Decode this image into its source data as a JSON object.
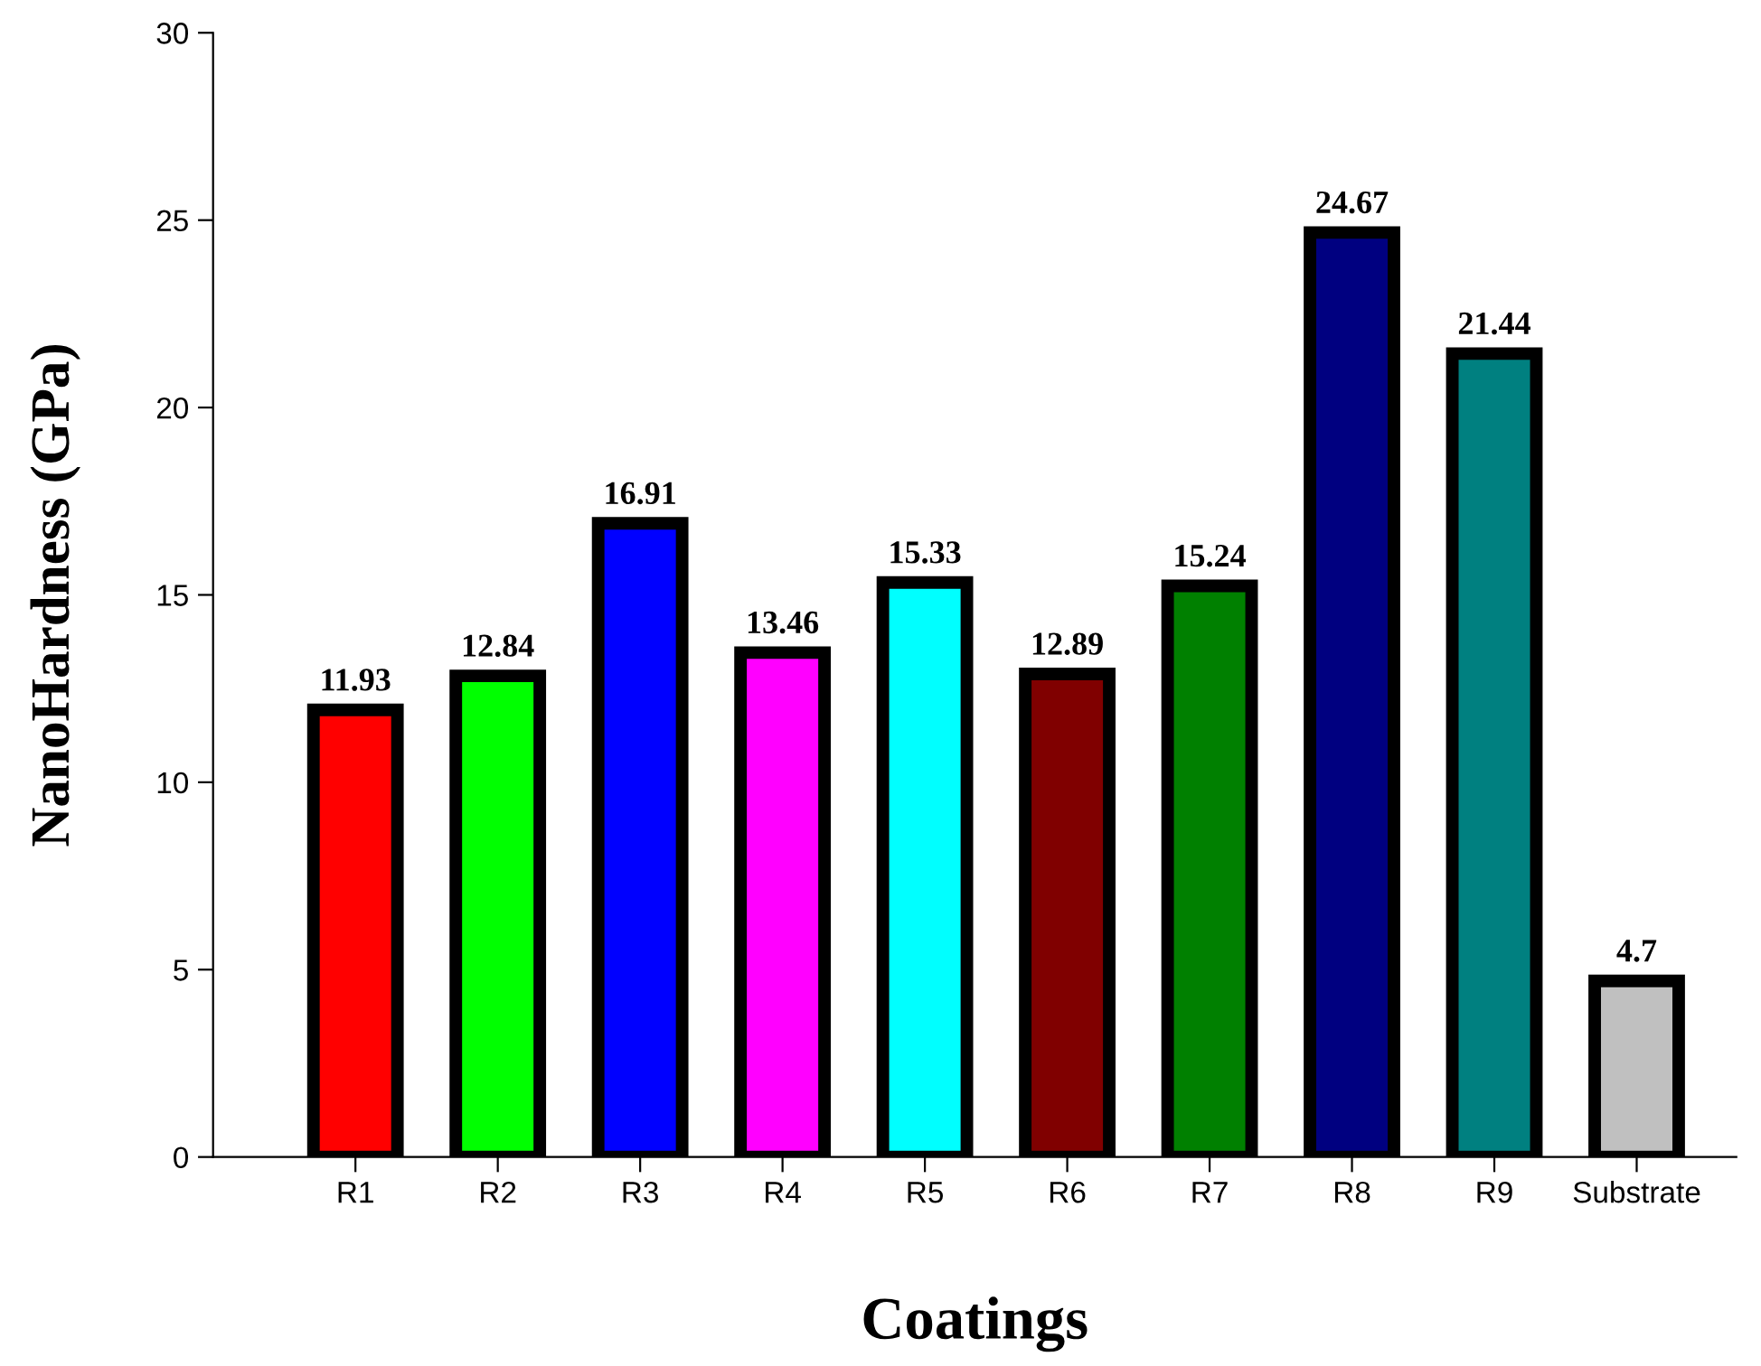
{
  "chart_data": {
    "type": "bar",
    "xlabel": "Coatings",
    "ylabel": "NanoHardness (GPa)",
    "categories": [
      "R1",
      "R2",
      "R3",
      "R4",
      "R5",
      "R6",
      "R7",
      "R8",
      "R9",
      "Substrate"
    ],
    "values": [
      11.93,
      12.84,
      16.91,
      13.46,
      15.33,
      12.89,
      15.24,
      24.67,
      21.44,
      4.7
    ],
    "colors": [
      "#ff0000",
      "#00ff00",
      "#0000ff",
      "#ff00ff",
      "#00ffff",
      "#800000",
      "#008000",
      "#000080",
      "#008080",
      "#c0c0c0"
    ],
    "ylim": [
      0,
      30
    ],
    "yticks": [
      0,
      5,
      10,
      15,
      20,
      25,
      30
    ],
    "data_labels": true,
    "grid": false,
    "legend": false
  }
}
